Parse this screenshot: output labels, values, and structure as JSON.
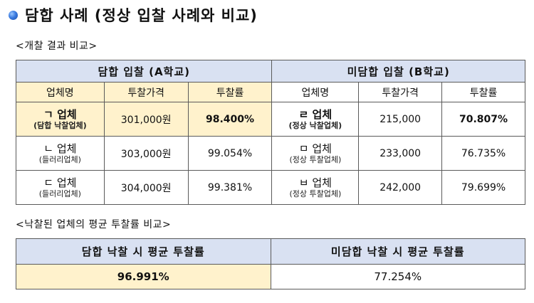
{
  "title": "담합 사례 (정상 입찰 사례와 비교)",
  "section1_caption": "<개찰 결과 비교>",
  "section2_caption": "<낙찰된 업체의 평균 투찰률 비교>",
  "table1": {
    "group_a": "담합 입찰 (A학교)",
    "group_b": "미담합 입찰 (B학교)",
    "columns": [
      "업체명",
      "투찰가격",
      "투찰률",
      "업체명",
      "투찰가격",
      "투찰률"
    ],
    "rows": [
      {
        "a_firm": "ㄱ 업체",
        "a_note": "(담합 낙찰업체)",
        "a_price": "301,000원",
        "a_rate": "98.400%",
        "b_firm": "ㄹ 업체",
        "b_note": "(정상 낙찰업체)",
        "b_price": "215,000",
        "b_rate": "70.807%"
      },
      {
        "a_firm": "ㄴ 업체",
        "a_note": "(들러리업체)",
        "a_price": "303,000원",
        "a_rate": "99.054%",
        "b_firm": "ㅁ 업체",
        "b_note": "(정상 투찰업체)",
        "b_price": "233,000",
        "b_rate": "76.735%"
      },
      {
        "a_firm": "ㄷ 업체",
        "a_note": "(들러리업체)",
        "a_price": "304,000원",
        "a_rate": "99.381%",
        "b_firm": "ㅂ 업체",
        "b_note": "(정상 투찰업체)",
        "b_price": "242,000",
        "b_rate": "79.699%"
      }
    ]
  },
  "table2": {
    "header_a": "담합 낙찰 시 평균 투찰률",
    "header_b": "미담합 낙찰 시 평균 투찰률",
    "value_a": "96.991%",
    "value_b": "77.254%"
  },
  "colors": {
    "header_blue": "#d9e1f2",
    "highlight_yellow": "#fff2cc",
    "bullet_blue": "#3a7be0"
  }
}
